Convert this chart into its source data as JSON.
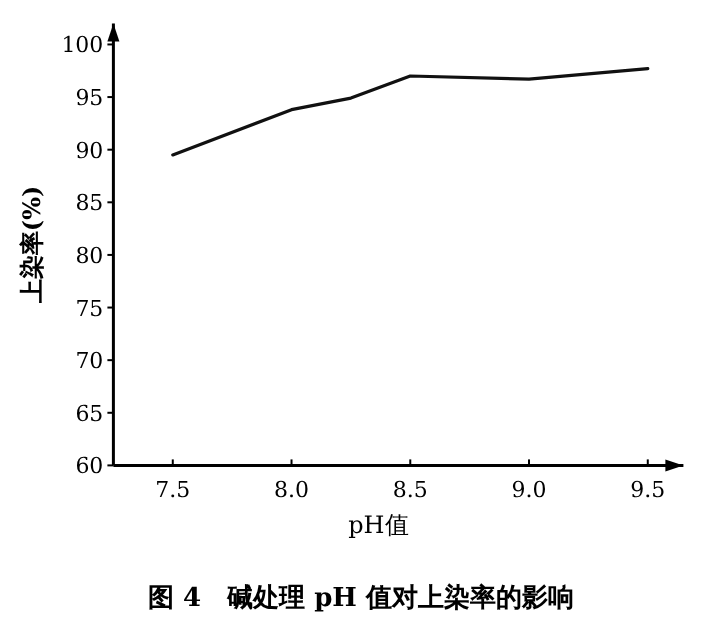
{
  "chart_data": {
    "type": "line",
    "title": "图 4　碱处理 pH 值对上染率的影响",
    "xlabel": "pH值",
    "ylabel": "上染率(%)",
    "x": [
      7.5,
      8.0,
      8.25,
      8.5,
      9.0,
      9.5
    ],
    "series": [
      {
        "color": "#111111",
        "values": [
          89.5,
          93.8,
          94.9,
          97.0,
          96.7,
          97.7
        ]
      }
    ],
    "xlim": [
      7.25,
      9.65
    ],
    "ylim": [
      60,
      102
    ],
    "xticks": [
      7.5,
      {
        "value": 8,
        "label": "8.0"
      },
      8.5,
      {
        "value": 9,
        "label": "9.0"
      },
      9.5
    ],
    "yticks": [
      60,
      65,
      70,
      75,
      80,
      85,
      90,
      95,
      100
    ],
    "line_style": "solid"
  }
}
